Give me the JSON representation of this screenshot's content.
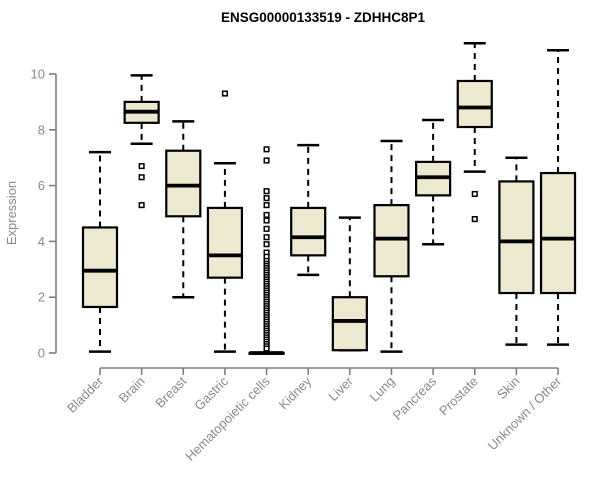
{
  "chart_data": {
    "type": "boxplot",
    "title": "ENSG00000133519 - ZDHHC8P1",
    "ylabel": "Expression",
    "xlabel": "",
    "y_ticks": [
      0,
      2,
      4,
      6,
      8,
      10
    ],
    "ylim": [
      0,
      11.2
    ],
    "grid": false,
    "legend": "none",
    "categories": [
      "Bladder",
      "Brain",
      "Breast",
      "Gastric",
      "Hematopoietic cells",
      "Kidney",
      "Liver",
      "Lung",
      "Pancreas",
      "Prostate",
      "Skin",
      "Unknown / Other"
    ],
    "series": [
      {
        "category": "Bladder",
        "whisker_low": 0.05,
        "q1": 1.65,
        "median": 2.95,
        "q3": 4.5,
        "whisker_high": 7.2,
        "outliers": []
      },
      {
        "category": "Brain",
        "whisker_low": 7.5,
        "q1": 8.25,
        "median": 8.65,
        "q3": 9.0,
        "whisker_high": 9.95,
        "outliers": [
          6.7,
          6.3,
          5.3
        ]
      },
      {
        "category": "Breast",
        "whisker_low": 2.0,
        "q1": 4.9,
        "median": 6.0,
        "q3": 7.25,
        "whisker_high": 8.3,
        "outliers": []
      },
      {
        "category": "Gastric",
        "whisker_low": 0.05,
        "q1": 2.7,
        "median": 3.5,
        "q3": 5.2,
        "whisker_high": 6.8,
        "outliers": [
          9.3
        ]
      },
      {
        "category": "Hematopoietic cells",
        "whisker_low": 0,
        "q1": 0,
        "median": 0,
        "q3": 0,
        "whisker_high": 0,
        "outliers": [
          7.3,
          6.9,
          5.8,
          5.55,
          5.3,
          4.95,
          4.75,
          4.45,
          4.15,
          3.9,
          3.6,
          3.45,
          3.3,
          3.2,
          3.12,
          3.04,
          2.96,
          2.88,
          2.8,
          2.72,
          2.64,
          2.56,
          2.48,
          2.4,
          2.32,
          2.24,
          2.16,
          2.08,
          2.0,
          1.92,
          1.84,
          1.76,
          1.68,
          1.6,
          1.52,
          1.44,
          1.36,
          1.28,
          1.2,
          1.12,
          1.04,
          0.96,
          0.88,
          0.8,
          0.72,
          0.64,
          0.56,
          0.48,
          0.4,
          0.32,
          0.24,
          0.16
        ]
      },
      {
        "category": "Kidney",
        "whisker_low": 2.8,
        "q1": 3.5,
        "median": 4.15,
        "q3": 5.2,
        "whisker_high": 7.45,
        "outliers": []
      },
      {
        "category": "Liver",
        "whisker_low": 0.1,
        "q1": 0.1,
        "median": 1.15,
        "q3": 2.0,
        "whisker_high": 4.85,
        "outliers": []
      },
      {
        "category": "Lung",
        "whisker_low": 0.05,
        "q1": 2.75,
        "median": 4.1,
        "q3": 5.3,
        "whisker_high": 7.6,
        "outliers": []
      },
      {
        "category": "Pancreas",
        "whisker_low": 3.9,
        "q1": 5.65,
        "median": 6.3,
        "q3": 6.85,
        "whisker_high": 8.35,
        "outliers": []
      },
      {
        "category": "Prostate",
        "whisker_low": 6.5,
        "q1": 8.1,
        "median": 8.8,
        "q3": 9.75,
        "whisker_high": 11.1,
        "outliers": [
          5.7,
          4.8
        ]
      },
      {
        "category": "Skin",
        "whisker_low": 0.3,
        "q1": 2.15,
        "median": 4.0,
        "q3": 6.15,
        "whisker_high": 7.0,
        "outliers": []
      },
      {
        "category": "Unknown / Other",
        "whisker_low": 0.3,
        "q1": 2.15,
        "median": 4.1,
        "q3": 6.45,
        "whisker_high": 10.85,
        "outliers": []
      }
    ],
    "colors": {
      "box_fill": "#EDE8D0",
      "box_border": "#000000",
      "median": "#000000",
      "whisker": "#000000",
      "axis": "#7F7F7F",
      "tick_label": "#8A8A8A",
      "title": "#000000",
      "background": "#FFFFFF"
    }
  }
}
